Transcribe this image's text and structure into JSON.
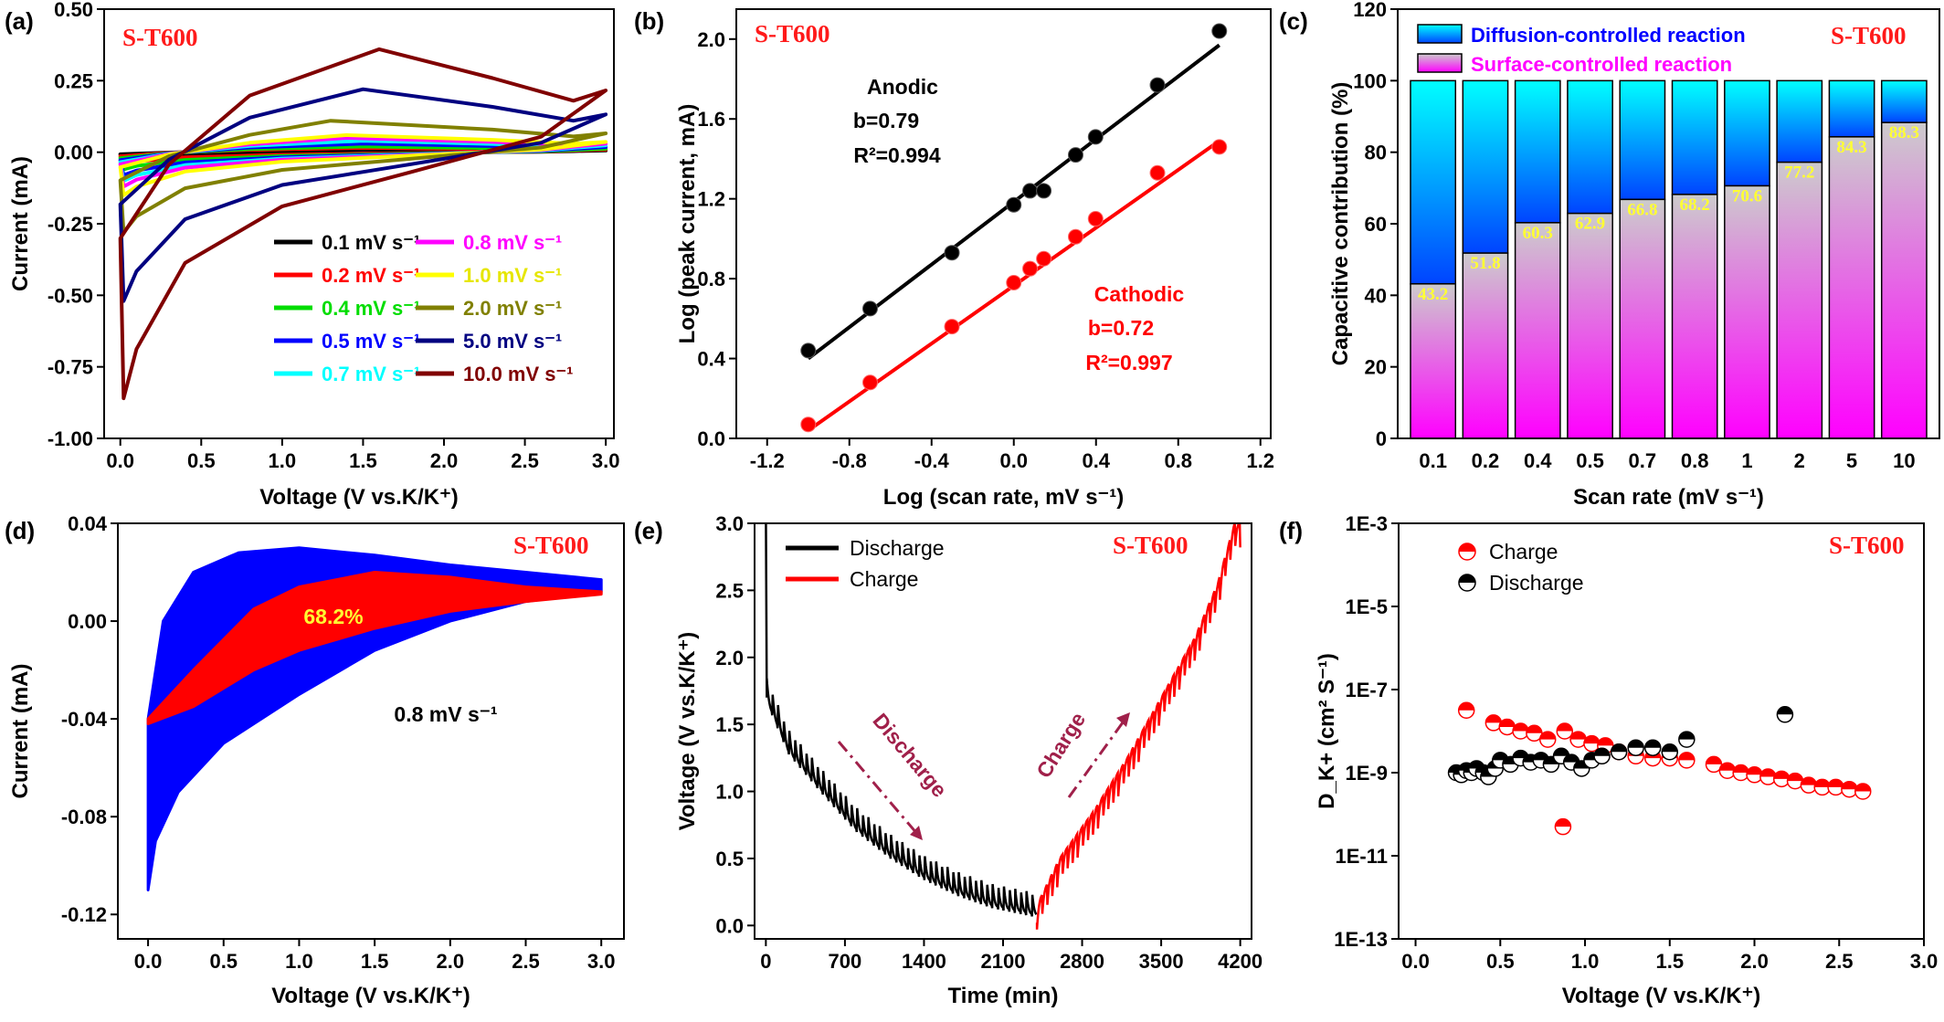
{
  "chart_data": [
    {
      "panel": "(a)",
      "type": "line",
      "title": "S-T600",
      "xlabel": "Voltage (V vs.K/K⁺)",
      "ylabel": "Current (mA)",
      "xlim": [
        -0.1,
        3.05
      ],
      "ylim": [
        -1.0,
        0.5
      ],
      "xticks": [
        "0.0",
        "0.5",
        "1.0",
        "1.5",
        "2.0",
        "2.5",
        "3.0"
      ],
      "yticks": [
        "0.50",
        "0.25",
        "0.00",
        "-0.25",
        "-0.50",
        "-0.75",
        "-1.00"
      ],
      "legend_placement": "bottom-right",
      "series": [
        {
          "name": "0.1 mV s⁻¹",
          "color": "#000000",
          "min": -0.02,
          "max": 0.01,
          "peak_v": 1.5
        },
        {
          "name": "0.2 mV s⁻¹",
          "color": "#ff0000",
          "min": -0.04,
          "max": 0.015,
          "peak_v": 1.5
        },
        {
          "name": "0.4 mV s⁻¹",
          "color": "#00dd00",
          "min": -0.06,
          "max": 0.02,
          "peak_v": 1.5
        },
        {
          "name": "0.5 mV s⁻¹",
          "color": "#0000ff",
          "min": -0.08,
          "max": 0.03,
          "peak_v": 1.5
        },
        {
          "name": "0.7 mV s⁻¹",
          "color": "#00ffff",
          "min": -0.1,
          "max": 0.04,
          "peak_v": 1.5
        },
        {
          "name": "0.8 mV s⁻¹",
          "color": "#ff00ff",
          "min": -0.12,
          "max": 0.05,
          "peak_v": 1.4
        },
        {
          "name": "1.0 mV s⁻¹",
          "color": "#ffff00",
          "min": -0.15,
          "max": 0.06,
          "peak_v": 1.4
        },
        {
          "name": "2.0 mV s⁻¹",
          "color": "#808000",
          "min": -0.28,
          "max": 0.11,
          "peak_v": 1.3
        },
        {
          "name": "5.0 mV s⁻¹",
          "color": "#000080",
          "min": -0.52,
          "max": 0.22,
          "peak_v": 1.5
        },
        {
          "name": "10.0 mV s⁻¹",
          "color": "#800000",
          "min": -0.86,
          "max": 0.36,
          "peak_v": 1.6
        }
      ]
    },
    {
      "panel": "(b)",
      "type": "scatter",
      "title": "S-T600",
      "xlabel": "Log (scan rate, mV s⁻¹)",
      "ylabel": "Log (peak current, mA)",
      "xlim": [
        -1.35,
        1.25
      ],
      "ylim": [
        0.0,
        2.15
      ],
      "xticks": [
        "-1.2",
        "-0.8",
        "-0.4",
        "0.0",
        "0.4",
        "0.8",
        "1.2"
      ],
      "yticks": [
        "0.0",
        "0.4",
        "0.8",
        "1.2",
        "1.6",
        "2.0"
      ],
      "series": [
        {
          "name": "Anodic",
          "color": "#000000",
          "b": "b=0.79",
          "r2": "R²=0.994",
          "x": [
            -1.0,
            -0.699,
            -0.301,
            0.0,
            0.079,
            0.146,
            0.301,
            0.398,
            0.699,
            1.0
          ],
          "y": [
            0.44,
            0.65,
            0.93,
            1.17,
            1.24,
            1.24,
            1.42,
            1.51,
            1.77,
            2.04
          ],
          "fit": [
            [
              -1.0,
              0.4
            ],
            [
              1.0,
              1.97
            ]
          ]
        },
        {
          "name": "Cathodic",
          "color": "#ff0000",
          "b": "b=0.72",
          "r2": "R²=0.997",
          "x": [
            -1.0,
            -0.699,
            -0.301,
            0.0,
            0.079,
            0.146,
            0.301,
            0.398,
            0.699,
            1.0
          ],
          "y": [
            0.07,
            0.28,
            0.56,
            0.78,
            0.85,
            0.9,
            1.01,
            1.1,
            1.33,
            1.46
          ],
          "fit": [
            [
              -1.0,
              0.04
            ],
            [
              1.0,
              1.49
            ]
          ]
        }
      ]
    },
    {
      "panel": "(c)",
      "type": "bar",
      "stacked": true,
      "title": "S-T600",
      "xlabel": "Scan rate (mV s⁻¹)",
      "ylabel": "Capacitive contribution (%)",
      "ylim": [
        0,
        120
      ],
      "yticks": [
        "0",
        "20",
        "40",
        "60",
        "80",
        "100",
        "120"
      ],
      "categories": [
        "0.1",
        "0.2",
        "0.4",
        "0.5",
        "0.7",
        "0.8",
        "1",
        "2",
        "5",
        "10"
      ],
      "surface": [
        43.2,
        51.8,
        60.3,
        62.9,
        66.8,
        68.2,
        70.6,
        77.2,
        84.3,
        88.3
      ],
      "surface_labels": [
        "43.2",
        "51.8",
        "60.3",
        "62.9",
        "66.8",
        "68.2",
        "70.6",
        "77.2",
        "84.3",
        "88.3"
      ],
      "legend": [
        "Diffusion-controlled reaction",
        "Surface-controlled reaction"
      ],
      "legend_placement": "top-left"
    },
    {
      "panel": "(d)",
      "type": "area",
      "title": "S-T600",
      "xlabel": "Voltage (V vs.K/K⁺)",
      "ylabel": "Current (mA)",
      "xlim": [
        -0.2,
        3.15
      ],
      "ylim": [
        -0.13,
        0.04
      ],
      "xticks": [
        "0.0",
        "0.5",
        "1.0",
        "1.5",
        "2.0",
        "2.5",
        "3.0"
      ],
      "yticks": [
        "0.04",
        "0.00",
        "-0.04",
        "-0.08",
        "-0.12"
      ],
      "annotation": "0.8 mV s⁻¹",
      "capacitive_percent": "68.2%",
      "total_upper": [
        [
          0.0,
          -0.04
        ],
        [
          0.1,
          0.0
        ],
        [
          0.3,
          0.02
        ],
        [
          0.6,
          0.028
        ],
        [
          1.0,
          0.03
        ],
        [
          1.5,
          0.027
        ],
        [
          2.0,
          0.023
        ],
        [
          2.5,
          0.02
        ],
        [
          3.0,
          0.017
        ]
      ],
      "total_lower": [
        [
          0.0,
          -0.11
        ],
        [
          0.05,
          -0.09
        ],
        [
          0.2,
          -0.07
        ],
        [
          0.5,
          -0.05
        ],
        [
          1.0,
          -0.03
        ],
        [
          1.5,
          -0.012
        ],
        [
          2.0,
          0.0
        ],
        [
          2.5,
          0.008
        ],
        [
          3.0,
          0.012
        ]
      ],
      "cap_upper": [
        [
          0.0,
          -0.04
        ],
        [
          0.3,
          -0.02
        ],
        [
          0.7,
          0.005
        ],
        [
          1.0,
          0.014
        ],
        [
          1.5,
          0.02
        ],
        [
          2.0,
          0.018
        ],
        [
          2.5,
          0.014
        ],
        [
          3.0,
          0.012
        ]
      ],
      "cap_lower": [
        [
          0.0,
          -0.042
        ],
        [
          0.3,
          -0.035
        ],
        [
          0.7,
          -0.02
        ],
        [
          1.0,
          -0.012
        ],
        [
          1.5,
          -0.003
        ],
        [
          2.0,
          0.004
        ],
        [
          2.5,
          0.008
        ],
        [
          3.0,
          0.011
        ]
      ]
    },
    {
      "panel": "(e)",
      "type": "line",
      "title": "S-T600",
      "xlabel": "Time (min)",
      "ylabel": "Voltage (V vs.K/K⁺)",
      "xlim": [
        -100,
        4300
      ],
      "ylim": [
        -0.1,
        3.0
      ],
      "xticks": [
        "0",
        "700",
        "1400",
        "2100",
        "2800",
        "3500",
        "4200"
      ],
      "yticks": [
        "0.0",
        "0.5",
        "1.0",
        "1.5",
        "2.0",
        "2.5",
        "3.0"
      ],
      "legend": [
        "Discharge",
        "Charge"
      ],
      "legend_colors": [
        "#000000",
        "#ff0000"
      ],
      "arrow_labels": [
        "Discharge",
        "Charge"
      ],
      "discharge_env": [
        [
          0,
          1.7
        ],
        [
          200,
          1.3
        ],
        [
          500,
          1.0
        ],
        [
          800,
          0.72
        ],
        [
          1100,
          0.52
        ],
        [
          1400,
          0.36
        ],
        [
          1700,
          0.24
        ],
        [
          2000,
          0.15
        ],
        [
          2400,
          0.08
        ]
      ],
      "charge_env": [
        [
          2400,
          0.1
        ],
        [
          2600,
          0.45
        ],
        [
          2900,
          0.8
        ],
        [
          3200,
          1.2
        ],
        [
          3500,
          1.65
        ],
        [
          3800,
          2.1
        ],
        [
          4000,
          2.5
        ],
        [
          4150,
          2.95
        ]
      ]
    },
    {
      "panel": "(f)",
      "type": "scatter",
      "title": "S-T600",
      "xlabel": "Voltage (V vs.K/K⁺)",
      "ylabel": "D_K+ (cm² S⁻¹)",
      "xlim": [
        -0.1,
        3.0
      ],
      "ylim_log10": [
        -13,
        -3
      ],
      "xticks": [
        "0.0",
        "0.5",
        "1.0",
        "1.5",
        "2.0",
        "2.5",
        "3.0"
      ],
      "yticks": [
        "1E-3",
        "1E-5",
        "1E-7",
        "1E-9",
        "1E-11",
        "1E-13"
      ],
      "legend": [
        "Charge",
        "Discharge"
      ],
      "series": [
        {
          "name": "Charge",
          "color": "#ff0000",
          "x": [
            0.3,
            0.46,
            0.54,
            0.62,
            0.7,
            0.78,
            0.88,
            0.96,
            1.04,
            1.12,
            1.2,
            1.3,
            1.4,
            1.5,
            1.6,
            1.76,
            1.84,
            1.92,
            2.0,
            2.08,
            2.16,
            2.24,
            2.32,
            2.4,
            2.48,
            2.56,
            2.64,
            0.87
          ],
          "log10": [
            -7.5,
            -7.8,
            -7.9,
            -8.0,
            -8.05,
            -8.2,
            -8.0,
            -8.2,
            -8.3,
            -8.35,
            -8.5,
            -8.6,
            -8.65,
            -8.65,
            -8.7,
            -8.8,
            -8.95,
            -9.0,
            -9.05,
            -9.1,
            -9.15,
            -9.2,
            -9.3,
            -9.35,
            -9.35,
            -9.4,
            -9.45,
            -10.3
          ]
        },
        {
          "name": "Discharge",
          "color": "#000000",
          "x": [
            0.24,
            0.27,
            0.3,
            0.33,
            0.36,
            0.4,
            0.43,
            0.47,
            0.5,
            0.56,
            0.62,
            0.68,
            0.74,
            0.8,
            0.86,
            0.92,
            0.98,
            1.04,
            1.1,
            1.2,
            1.3,
            1.4,
            1.5,
            1.6,
            2.18
          ],
          "log10": [
            -9.0,
            -9.05,
            -8.95,
            -9.0,
            -8.9,
            -9.0,
            -9.1,
            -8.9,
            -8.7,
            -8.8,
            -8.65,
            -8.75,
            -8.7,
            -8.8,
            -8.6,
            -8.75,
            -8.9,
            -8.7,
            -8.6,
            -8.5,
            -8.4,
            -8.4,
            -8.5,
            -8.2,
            -7.6
          ]
        }
      ]
    }
  ]
}
